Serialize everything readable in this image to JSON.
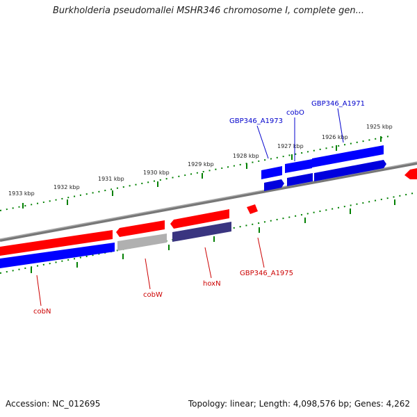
{
  "title": "Burkholderia pseudomallei MSHR346 chromosome I, complete gen...",
  "footer": {
    "accession": "Accession: NC_012695",
    "summary": "Topology: linear; Length: 4,098,576 bp; Genes: 4,262"
  },
  "colors": {
    "forward_gene": "#ff0000",
    "reverse_gene": "#0000ff",
    "pseudo_gene": "#b0b0b0",
    "hox_gene": "#3a3580",
    "tick": "#008000",
    "backbone": "#888888",
    "forward_label": "#cc0000",
    "reverse_label": "#0000cc"
  },
  "upper_scale": [
    {
      "label": "1925 kbp"
    },
    {
      "label": "1926 kbp"
    },
    {
      "label": "1927 kbp"
    },
    {
      "label": "1928 kbp"
    },
    {
      "label": "1929 kbp"
    },
    {
      "label": "1930 kbp"
    },
    {
      "label": "1931 kbp"
    },
    {
      "label": "1932 kbp"
    },
    {
      "label": "1933 kbp"
    }
  ],
  "gene_labels": [
    {
      "name": "GBP346_A1971"
    },
    {
      "name": "cobO"
    },
    {
      "name": "GBP346_A1973"
    },
    {
      "name": "GBP346_A1975"
    },
    {
      "name": "hoxN"
    },
    {
      "name": "cobW"
    },
    {
      "name": "cobN"
    }
  ]
}
